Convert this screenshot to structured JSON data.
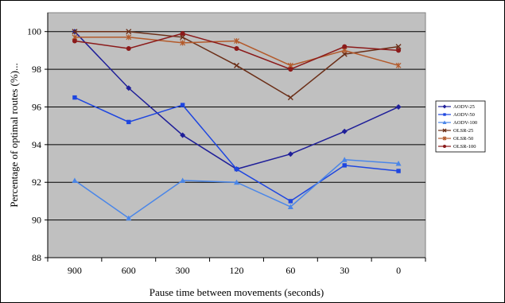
{
  "chart_data": {
    "type": "line",
    "title": "",
    "xlabel": "Pause time between movements (seconds)",
    "ylabel": "Percentage of optimal routes (%)...",
    "categories": [
      "900",
      "600",
      "300",
      "120",
      "60",
      "30",
      "0"
    ],
    "ylim": [
      88,
      101
    ],
    "yticks": [
      "88",
      "90",
      "92",
      "94",
      "96",
      "98",
      "100"
    ],
    "grid": true,
    "legend_position": "right",
    "plot_background": "#c0c0c0",
    "series": [
      {
        "name": "AODV-25",
        "color": "#1f1f99",
        "marker": "diamond",
        "values": [
          100,
          97,
          94.5,
          92.7,
          93.5,
          94.7,
          96
        ]
      },
      {
        "name": "AODV-50",
        "color": "#1e46e0",
        "marker": "square",
        "values": [
          96.5,
          95.2,
          96.1,
          92.7,
          91,
          92.9,
          92.6
        ]
      },
      {
        "name": "AODV-100",
        "color": "#4a86e8",
        "marker": "triangle",
        "values": [
          92.1,
          90.1,
          92.1,
          92,
          90.7,
          93.2,
          93
        ]
      },
      {
        "name": "OLSR-25",
        "color": "#6b2e17",
        "marker": "x",
        "values": [
          100,
          100,
          99.7,
          98.2,
          96.5,
          98.8,
          99.2
        ]
      },
      {
        "name": "OLSR-50",
        "color": "#b35a2b",
        "marker": "star",
        "values": [
          99.7,
          99.7,
          99.4,
          99.5,
          98.2,
          99,
          98.2
        ]
      },
      {
        "name": "OLSR-100",
        "color": "#8b1a1a",
        "marker": "circle",
        "values": [
          99.5,
          99.1,
          99.9,
          99.1,
          98,
          99.2,
          99
        ]
      }
    ]
  }
}
